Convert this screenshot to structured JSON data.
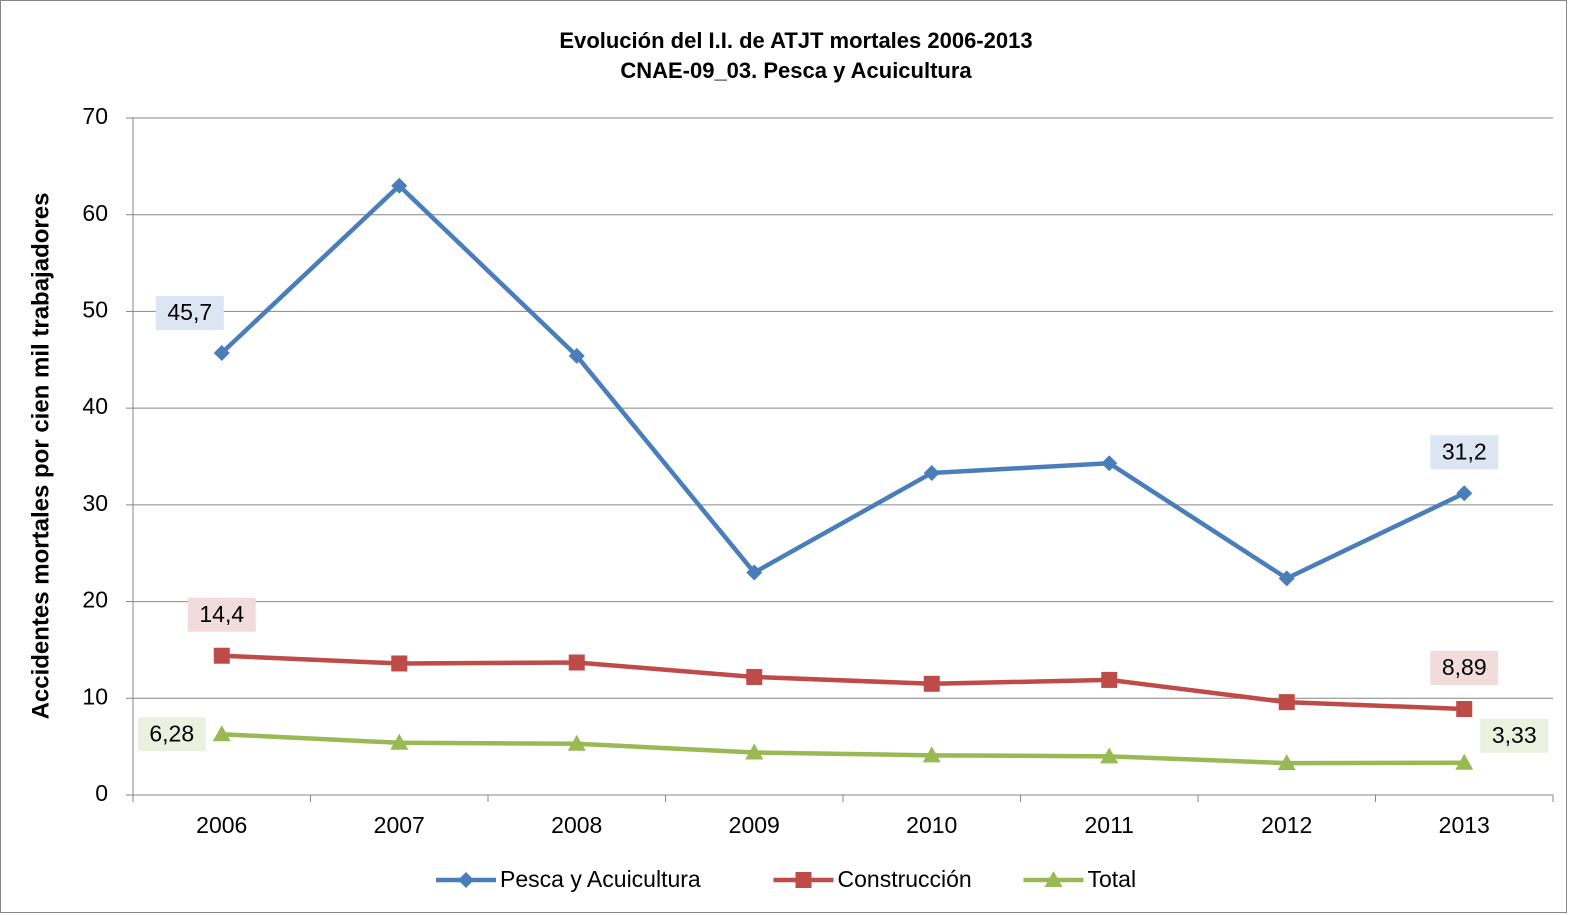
{
  "chart_data": {
    "type": "line",
    "title": "Evolución del I.I. de ATJT mortales 2006-2013",
    "subtitle": "CNAE-09_03. Pesca y Acuicultura",
    "y_label": "Accidentes mortales por cien mil trabajadores",
    "categories": [
      "2006",
      "2007",
      "2008",
      "2009",
      "2010",
      "2011",
      "2012",
      "2013"
    ],
    "series": [
      {
        "name": "Pesca y Acuicultura",
        "color": "#4a7ebb",
        "marker": "diamond",
        "values": [
          45.7,
          63.0,
          45.4,
          23.0,
          33.3,
          34.3,
          22.4,
          31.2
        ],
        "value_labels": [
          "45,7",
          null,
          null,
          null,
          null,
          null,
          null,
          "31,2"
        ]
      },
      {
        "name": "Construcción",
        "color": "#be4b48",
        "marker": "square",
        "values": [
          14.4,
          13.6,
          13.7,
          12.2,
          11.5,
          11.9,
          9.6,
          8.89
        ],
        "value_labels": [
          "14,4",
          null,
          null,
          null,
          null,
          null,
          null,
          "8,89"
        ]
      },
      {
        "name": "Total",
        "color": "#98b954",
        "marker": "triangle",
        "values": [
          6.28,
          5.4,
          5.3,
          4.4,
          4.1,
          4.0,
          3.3,
          3.33
        ],
        "value_labels": [
          "6,28",
          null,
          null,
          null,
          null,
          null,
          null,
          "3,33"
        ]
      }
    ],
    "ylim": [
      0,
      70
    ],
    "yticks": [
      0,
      10,
      20,
      30,
      40,
      50,
      60,
      70
    ],
    "grid": true,
    "legend": "bottom"
  }
}
